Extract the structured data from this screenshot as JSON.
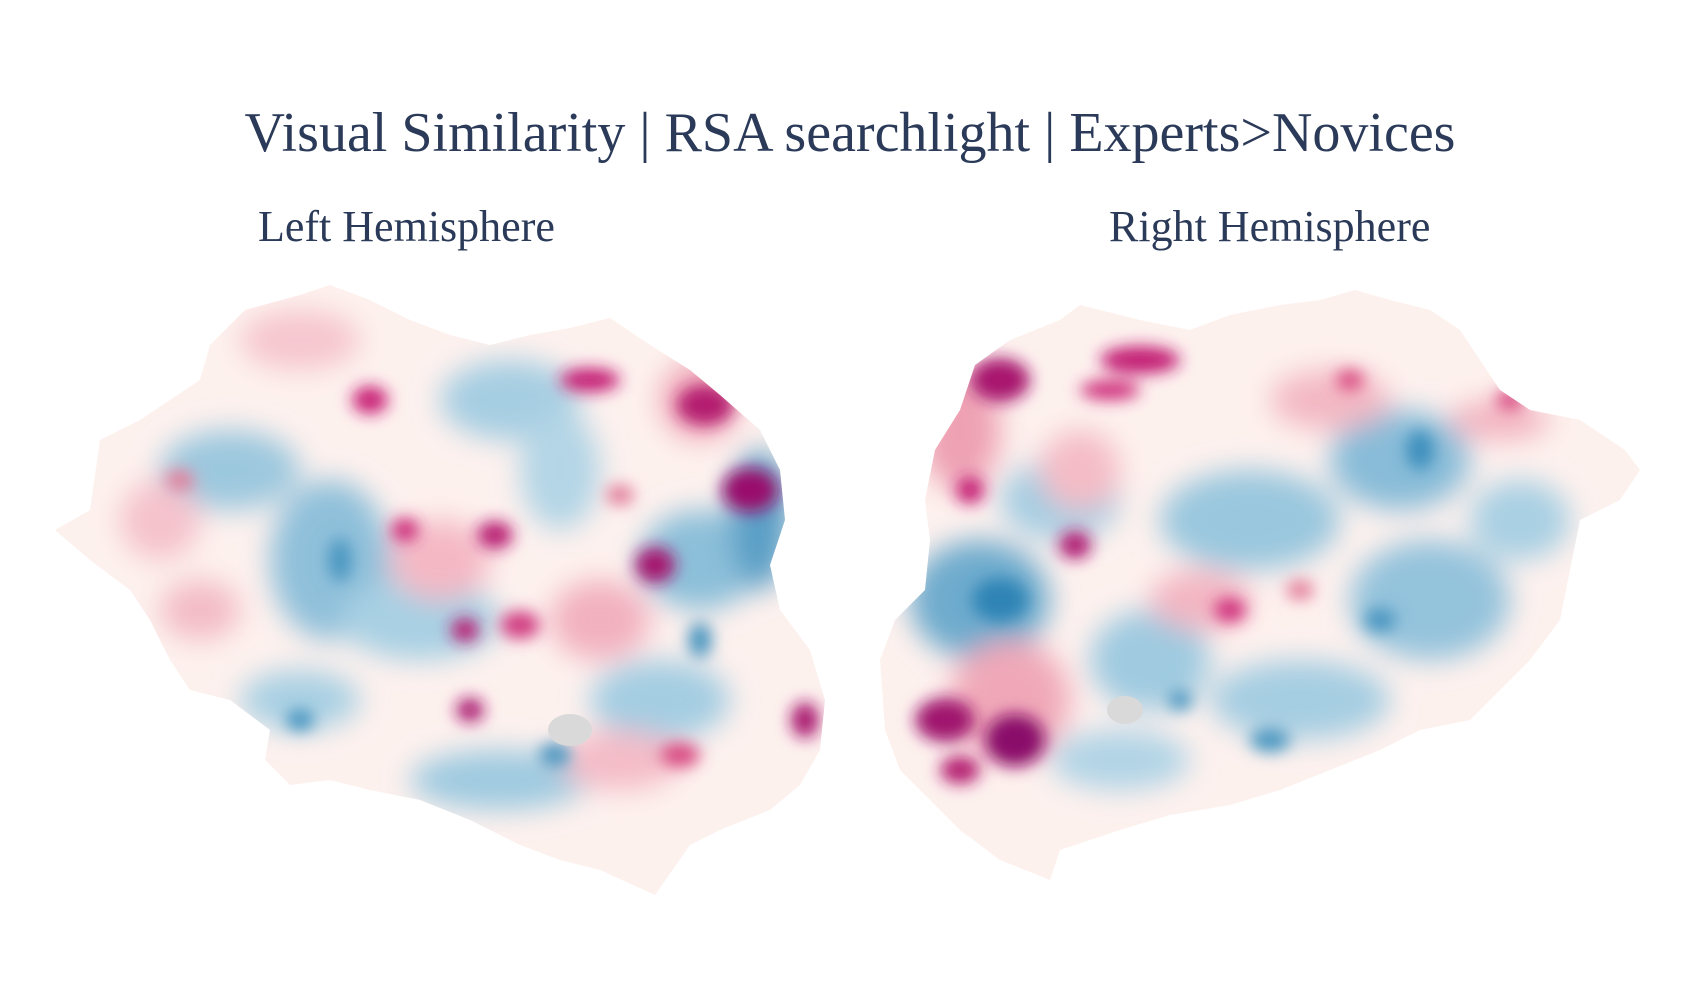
{
  "title": "Visual Similarity | RSA searchlight | Experts>Novices",
  "panels": {
    "left": {
      "label": "Left Hemisphere"
    },
    "right": {
      "label": "Right Hemisphere"
    }
  },
  "colors": {
    "text": "#2a3a58",
    "positive_strong": "#8a0a6a",
    "positive_mid": "#d9307a",
    "positive_light": "#f4b8c4",
    "neutral": "#fdf3f0",
    "negative_light": "#b8d8e8",
    "negative_mid": "#5aa3c8",
    "negative_strong": "#1f78a8",
    "medial_wall": "#d9d9d9"
  },
  "colormap": "RdBu_r"
}
